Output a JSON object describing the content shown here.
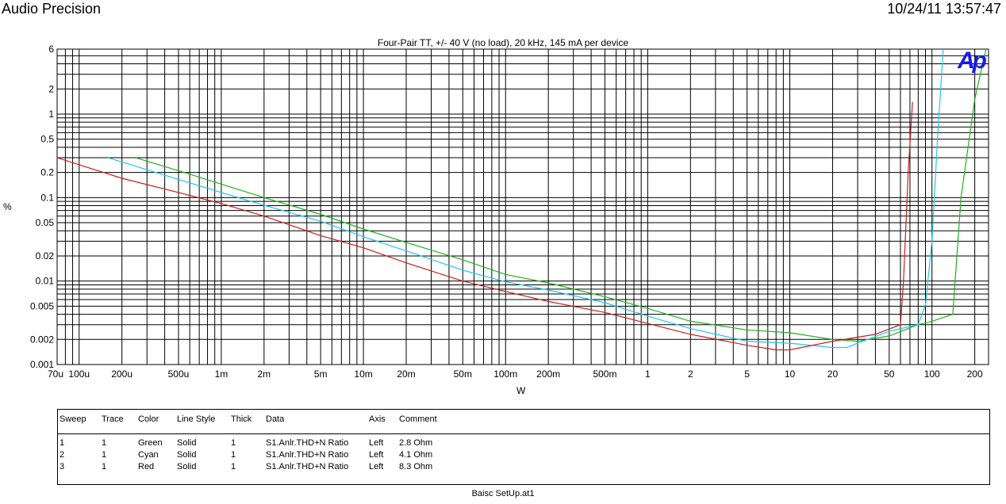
{
  "header": {
    "brand": "Audio Precision",
    "timestamp": "10/24/11 13:57:47"
  },
  "logo": "Ap",
  "footer": {
    "filename": "Baisc SetUp.at1"
  },
  "colors": {
    "Green": "#22b022",
    "Cyan": "#22c8e6",
    "Red": "#c81e1e"
  },
  "chart_data": {
    "type": "line",
    "title": "Four-Pair TT, +/- 40 V (no load), 20 kHz, 145 mA per device",
    "xlabel": "W",
    "ylabel": "%",
    "x_scale": "log",
    "y_scale": "log",
    "xlim": [
      7e-05,
      250
    ],
    "ylim": [
      0.001,
      6
    ],
    "grid": true,
    "x_ticks": [
      {
        "v": 7e-05,
        "label": "70u"
      },
      {
        "v": 0.0001,
        "label": "100u"
      },
      {
        "v": 0.0002,
        "label": "200u"
      },
      {
        "v": 0.0005,
        "label": "500u"
      },
      {
        "v": 0.001,
        "label": "1m"
      },
      {
        "v": 0.002,
        "label": "2m"
      },
      {
        "v": 0.005,
        "label": "5m"
      },
      {
        "v": 0.01,
        "label": "10m"
      },
      {
        "v": 0.02,
        "label": "20m"
      },
      {
        "v": 0.05,
        "label": "50m"
      },
      {
        "v": 0.1,
        "label": "100m"
      },
      {
        "v": 0.2,
        "label": "200m"
      },
      {
        "v": 0.5,
        "label": "500m"
      },
      {
        "v": 1,
        "label": "1"
      },
      {
        "v": 2,
        "label": "2"
      },
      {
        "v": 5,
        "label": "5"
      },
      {
        "v": 10,
        "label": "10"
      },
      {
        "v": 20,
        "label": "20"
      },
      {
        "v": 50,
        "label": "50"
      },
      {
        "v": 100,
        "label": "100"
      },
      {
        "v": 200,
        "label": "200"
      }
    ],
    "y_ticks": [
      {
        "v": 6,
        "label": "6"
      },
      {
        "v": 2,
        "label": "2"
      },
      {
        "v": 1,
        "label": "1"
      },
      {
        "v": 0.5,
        "label": "0.5"
      },
      {
        "v": 0.2,
        "label": "0.2"
      },
      {
        "v": 0.1,
        "label": "0.1"
      },
      {
        "v": 0.05,
        "label": "0.05"
      },
      {
        "v": 0.02,
        "label": "0.02"
      },
      {
        "v": 0.01,
        "label": "0.01"
      },
      {
        "v": 0.005,
        "label": "0.005"
      },
      {
        "v": 0.002,
        "label": "0.002"
      },
      {
        "v": 0.001,
        "label": "0.001"
      }
    ],
    "series": [
      {
        "name": "Green",
        "color": "#22b022",
        "x": [
          0.00025,
          0.0005,
          0.001,
          0.002,
          0.005,
          0.01,
          0.02,
          0.05,
          0.1,
          0.2,
          0.5,
          1,
          2,
          5,
          10,
          20,
          30,
          50,
          80,
          100,
          140,
          160,
          200,
          240
        ],
        "y": [
          0.3,
          0.21,
          0.145,
          0.1,
          0.063,
          0.042,
          0.029,
          0.018,
          0.012,
          0.0095,
          0.0065,
          0.0047,
          0.0033,
          0.0026,
          0.0024,
          0.002,
          0.0019,
          0.0022,
          0.003,
          0.0033,
          0.004,
          0.1,
          1.5,
          6
        ]
      },
      {
        "name": "Cyan",
        "color": "#22c8e6",
        "x": [
          0.00016,
          0.0005,
          0.001,
          0.002,
          0.005,
          0.01,
          0.02,
          0.05,
          0.1,
          0.2,
          0.5,
          1,
          2,
          5,
          10,
          20,
          25,
          30,
          50,
          80,
          90,
          100,
          110,
          120
        ],
        "y": [
          0.3,
          0.165,
          0.115,
          0.081,
          0.052,
          0.034,
          0.023,
          0.0135,
          0.0098,
          0.0078,
          0.0055,
          0.0038,
          0.0027,
          0.0019,
          0.0018,
          0.0016,
          0.0016,
          0.0018,
          0.0025,
          0.003,
          0.0052,
          0.03,
          0.6,
          6
        ]
      },
      {
        "name": "Red",
        "color": "#c81e1e",
        "x": [
          7e-05,
          0.0002,
          0.0005,
          0.001,
          0.002,
          0.005,
          0.01,
          0.02,
          0.05,
          0.1,
          0.2,
          0.5,
          1,
          2,
          5,
          8,
          10,
          20,
          40,
          60,
          63,
          68,
          73
        ],
        "y": [
          0.3,
          0.17,
          0.115,
          0.085,
          0.06,
          0.035,
          0.025,
          0.0165,
          0.01,
          0.0075,
          0.0057,
          0.0042,
          0.0031,
          0.0023,
          0.0017,
          0.0015,
          0.0015,
          0.0019,
          0.0023,
          0.003,
          0.01,
          0.2,
          1.4
        ]
      }
    ]
  },
  "legend": {
    "headers": [
      "Sweep",
      "Trace",
      "Color",
      "Line Style",
      "Thick",
      "Data",
      "Axis",
      "Comment"
    ],
    "rows": [
      [
        "1",
        "1",
        "Green",
        "Solid",
        "1",
        "S1.Anlr.THD+N Ratio",
        "Left",
        "2.8 Ohm"
      ],
      [
        "2",
        "1",
        "Cyan",
        "Solid",
        "1",
        "S1.Anlr.THD+N Ratio",
        "Left",
        "4.1 Ohm"
      ],
      [
        "3",
        "1",
        "Red",
        "Solid",
        "1",
        "S1.Anlr.THD+N Ratio",
        "Left",
        "8.3 Ohm"
      ]
    ]
  }
}
